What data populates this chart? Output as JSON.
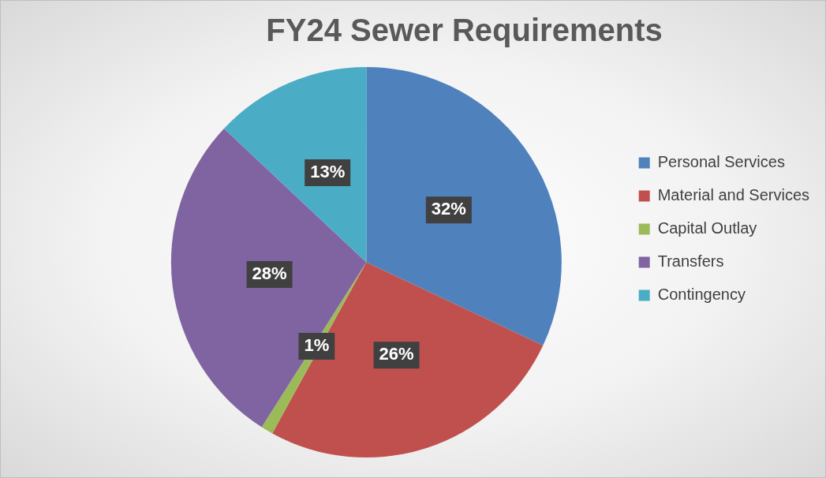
{
  "chart_data": {
    "type": "pie",
    "title": "FY24 Sewer Requirements",
    "categories": [
      "Personal Services",
      "Material and Services",
      "Capital Outlay",
      "Transfers",
      "Contingency"
    ],
    "values": [
      32,
      26,
      1,
      28,
      13
    ],
    "colors": [
      "#4f81bd",
      "#c0504d",
      "#9bbb59",
      "#8064a2",
      "#4bacc6"
    ],
    "value_labels": [
      "32%",
      "26%",
      "1%",
      "28%",
      "13%"
    ],
    "legend": "right"
  }
}
